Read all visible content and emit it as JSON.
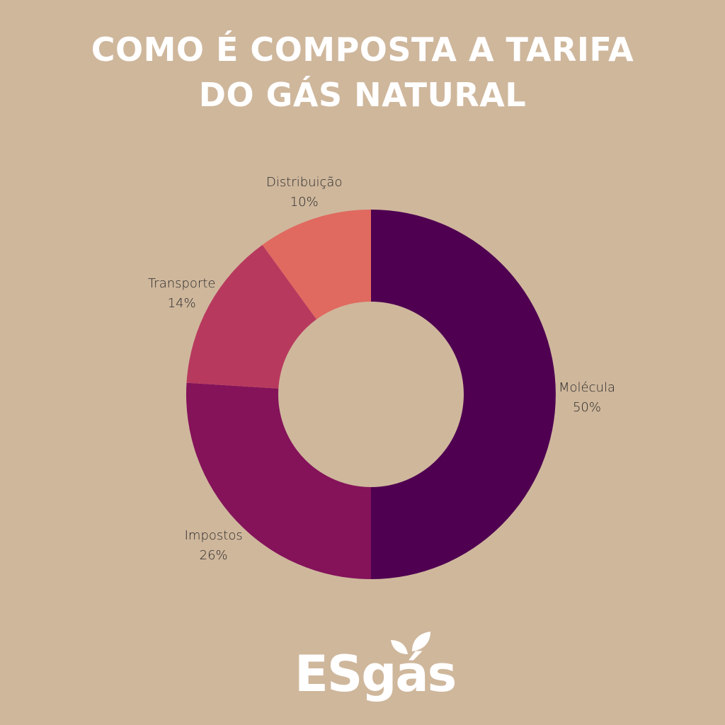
{
  "title": {
    "line1": "COMO É COMPOSTA A TARIFA",
    "line2": "DO GÁS NATURAL"
  },
  "chart_data": {
    "type": "pie",
    "title": "COMO É COMPOSTA A TARIFA DO GÁS NATURAL",
    "categories": [
      "Molécula",
      "Impostos",
      "Transporte",
      "Distribuição"
    ],
    "values": [
      50,
      26,
      14,
      10
    ],
    "value_labels": [
      "50%",
      "26%",
      "14%",
      "10%"
    ],
    "colors": [
      "#4f0051",
      "#84135a",
      "#b8395e",
      "#e06a60"
    ],
    "donut": true
  },
  "logo": {
    "text": "ESgás",
    "color": "#ffffff"
  },
  "colors": {
    "background": "#cfb79c",
    "title": "#ffffff"
  }
}
